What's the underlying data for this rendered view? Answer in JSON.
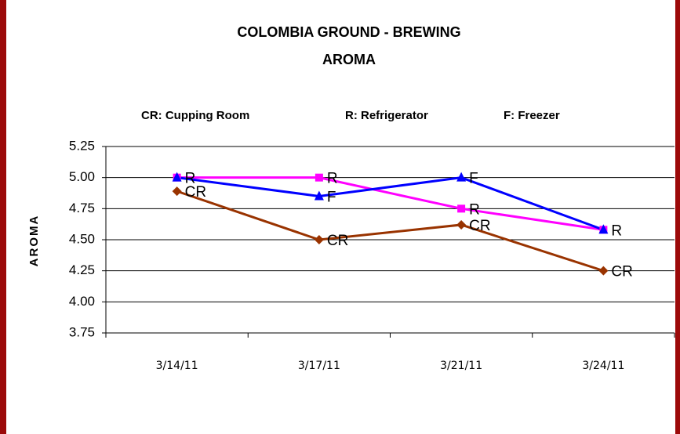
{
  "chart_data": {
    "type": "line",
    "title": "COLOMBIA GROUND -  BREWING",
    "subtitle": "AROMA",
    "annotations": [
      "CR: Cupping Room",
      "R: Refrigerator",
      "F: Freezer"
    ],
    "ylabel": "AROMA",
    "categories": [
      "3/14/11",
      "3/17/11",
      "3/21/11",
      "3/24/11"
    ],
    "series": [
      {
        "color": "#993300",
        "marker": "diamond",
        "values": [
          4.89,
          4.5,
          4.62,
          4.25
        ],
        "labels": [
          "CR",
          "CR",
          "CR",
          "CR"
        ]
      },
      {
        "color": "#ff00ff",
        "marker": "square",
        "values": [
          5.0,
          5.0,
          4.75,
          4.58
        ],
        "labels": [
          "R",
          "R",
          "R",
          "R"
        ]
      },
      {
        "color": "#0000ff",
        "marker": "triangle",
        "values": [
          5.0,
          4.85,
          5.0,
          4.58
        ],
        "labels": [
          null,
          "F",
          "F",
          null
        ]
      }
    ],
    "ylim": [
      3.75,
      5.25
    ],
    "yticks": [
      3.75,
      {
        "value": 4,
        "label": "4.00"
      },
      4.25,
      {
        "value": 4.5,
        "label": "4.50"
      },
      4.75,
      {
        "value": 5,
        "label": "5.00"
      },
      5.25
    ],
    "grid": true
  }
}
